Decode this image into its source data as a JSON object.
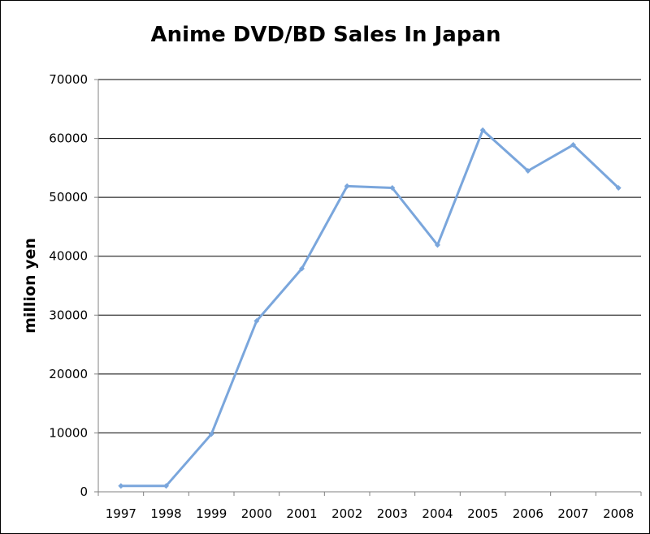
{
  "chart_data": {
    "type": "line",
    "title": "Anime DVD/BD Sales In Japan",
    "xlabel": "",
    "ylabel": "million yen",
    "categories": [
      "1997",
      "1998",
      "1999",
      "2000",
      "2001",
      "2002",
      "2003",
      "2004",
      "2005",
      "2006",
      "2007",
      "2008"
    ],
    "series": [
      {
        "values": [
          1000,
          1000,
          9800,
          29000,
          37900,
          51900,
          51600,
          41900,
          61400,
          54500,
          58900,
          51600
        ]
      }
    ],
    "ylim": [
      0,
      70000
    ],
    "yticks": [
      "0",
      "10000",
      "20000",
      "30000",
      "40000",
      "50000",
      "60000",
      "70000"
    ],
    "grid": true,
    "legend": "none",
    "colors": {
      "line": "#7aa6dc",
      "grid": "#000000",
      "axis": "#808080"
    }
  }
}
